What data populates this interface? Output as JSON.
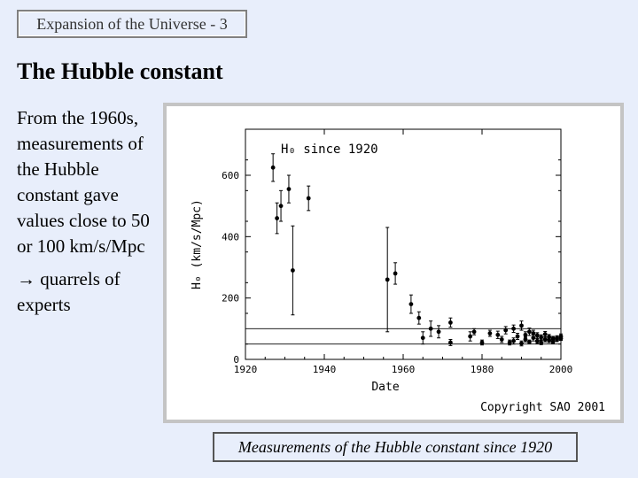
{
  "header": {
    "label": "Expansion of the Universe - 3"
  },
  "slide": {
    "title": "The Hubble constant",
    "paragraph1": "From the 1960s, measurements of the Hubble constant gave values close to 50 or 100 km/s/Mpc",
    "paragraph2": "→ quarrels of experts"
  },
  "caption": "Measurements of the Hubble constant since 1920",
  "chart_data": {
    "type": "scatter",
    "title": "H₀ since 1920",
    "xlabel": "Date",
    "ylabel": "H₀ (km/s/Mpc)",
    "copyright": "Copyright SAO 2001",
    "xlim": [
      1920,
      2000
    ],
    "ylim": [
      0,
      750
    ],
    "x_ticks": [
      1920,
      1940,
      1960,
      1980,
      2000
    ],
    "x_tick_labels": [
      "1920",
      "1940",
      "1960",
      "1980",
      "2000"
    ],
    "y_ticks": [
      0,
      200,
      400,
      600
    ],
    "y_tick_labels": [
      "0",
      "200",
      "400",
      "600"
    ],
    "reference_lines": [
      50,
      100
    ],
    "grid": false,
    "series": [
      {
        "points": [
          {
            "x": 1927,
            "y": 625,
            "err": 45
          },
          {
            "x": 1928,
            "y": 460,
            "err": 50
          },
          {
            "x": 1929,
            "y": 500,
            "err": 50
          },
          {
            "x": 1931,
            "y": 555,
            "err": 45
          },
          {
            "x": 1932,
            "y": 290,
            "err": 145
          },
          {
            "x": 1936,
            "y": 525,
            "err": 40
          },
          {
            "x": 1956,
            "y": 260,
            "err": 170
          },
          {
            "x": 1958,
            "y": 280,
            "err": 35
          },
          {
            "x": 1962,
            "y": 180,
            "err": 30
          },
          {
            "x": 1964,
            "y": 135,
            "err": 20
          },
          {
            "x": 1965,
            "y": 70,
            "err": 20
          },
          {
            "x": 1967,
            "y": 100,
            "err": 25
          },
          {
            "x": 1969,
            "y": 90,
            "err": 20
          },
          {
            "x": 1972,
            "y": 120,
            "err": 15
          },
          {
            "x": 1972,
            "y": 55,
            "err": 10
          },
          {
            "x": 1977,
            "y": 75,
            "err": 15
          },
          {
            "x": 1978,
            "y": 90,
            "err": 10
          },
          {
            "x": 1980,
            "y": 55,
            "err": 8
          },
          {
            "x": 1982,
            "y": 85,
            "err": 10
          },
          {
            "x": 1984,
            "y": 80,
            "err": 12
          },
          {
            "x": 1985,
            "y": 65,
            "err": 10
          },
          {
            "x": 1986,
            "y": 95,
            "err": 12
          },
          {
            "x": 1987,
            "y": 55,
            "err": 8
          },
          {
            "x": 1988,
            "y": 60,
            "err": 10
          },
          {
            "x": 1988,
            "y": 100,
            "err": 12
          },
          {
            "x": 1989,
            "y": 75,
            "err": 10
          },
          {
            "x": 1990,
            "y": 52,
            "err": 8
          },
          {
            "x": 1990,
            "y": 110,
            "err": 15
          },
          {
            "x": 1991,
            "y": 80,
            "err": 10
          },
          {
            "x": 1991,
            "y": 65,
            "err": 8
          },
          {
            "x": 1992,
            "y": 90,
            "err": 12
          },
          {
            "x": 1992,
            "y": 57,
            "err": 6
          },
          {
            "x": 1993,
            "y": 70,
            "err": 10
          },
          {
            "x": 1993,
            "y": 85,
            "err": 10
          },
          {
            "x": 1994,
            "y": 60,
            "err": 8
          },
          {
            "x": 1994,
            "y": 78,
            "err": 9
          },
          {
            "x": 1995,
            "y": 72,
            "err": 8
          },
          {
            "x": 1995,
            "y": 55,
            "err": 7
          },
          {
            "x": 1996,
            "y": 65,
            "err": 8
          },
          {
            "x": 1996,
            "y": 82,
            "err": 9
          },
          {
            "x": 1997,
            "y": 62,
            "err": 7
          },
          {
            "x": 1997,
            "y": 73,
            "err": 8
          },
          {
            "x": 1998,
            "y": 68,
            "err": 7
          },
          {
            "x": 1998,
            "y": 58,
            "err": 6
          },
          {
            "x": 1999,
            "y": 70,
            "err": 7
          },
          {
            "x": 1999,
            "y": 64,
            "err": 6
          },
          {
            "x": 2000,
            "y": 68,
            "err": 6
          },
          {
            "x": 2000,
            "y": 75,
            "err": 8
          }
        ]
      }
    ]
  }
}
